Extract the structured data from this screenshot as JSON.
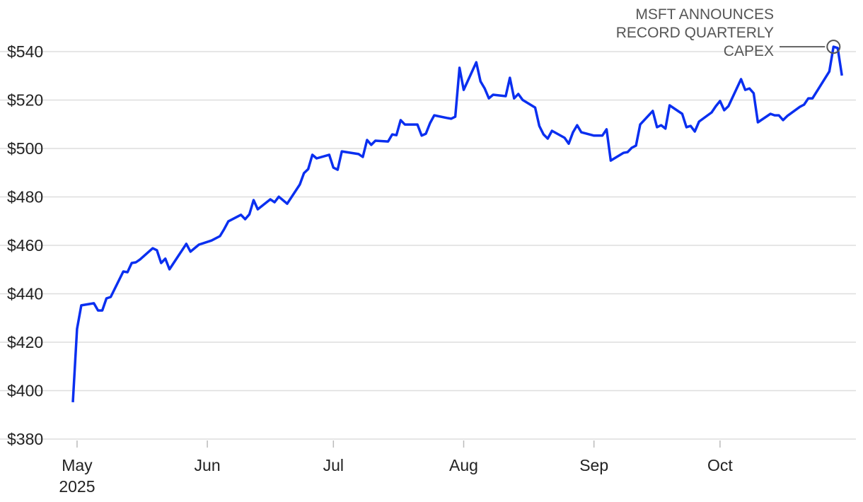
{
  "chart_data": {
    "type": "line",
    "x": [
      -1,
      0,
      1,
      4,
      5,
      6,
      7,
      8,
      11,
      12,
      13,
      14,
      15,
      18,
      19,
      20,
      21,
      22,
      26,
      27,
      29,
      32,
      34,
      35,
      36,
      39,
      40,
      41,
      42,
      43,
      46,
      47,
      48,
      50,
      53,
      54,
      55,
      56,
      57,
      60,
      61,
      62,
      63,
      67,
      68,
      69,
      70,
      71,
      74,
      75,
      76,
      77,
      78,
      81,
      82,
      83,
      84,
      85,
      88,
      89,
      90,
      91,
      92,
      95,
      96,
      97,
      98,
      99,
      102,
      103,
      104,
      105,
      106,
      109,
      110,
      111,
      112,
      113,
      116,
      117,
      118,
      119,
      120,
      123,
      125,
      126,
      127,
      130,
      131,
      132,
      133,
      134,
      137,
      138,
      139,
      140,
      141,
      144,
      145,
      146,
      147,
      148,
      151,
      152,
      153,
      154,
      155,
      158,
      159,
      160,
      161,
      162,
      165,
      166,
      167,
      168,
      169,
      172,
      173,
      174,
      175,
      179,
      180,
      181,
      182
    ],
    "series": [
      {
        "name": "MSFT",
        "color": "#0a2ff0",
        "values": [
          395.2,
          425.5,
          435.2,
          436.1,
          433.1,
          433.1,
          438.1,
          438.7,
          449.2,
          448.9,
          452.7,
          453,
          454.2,
          458.8,
          458,
          452.7,
          454.5,
          450.1,
          460.6,
          457.4,
          460.3,
          462,
          463.8,
          466.7,
          469.9,
          472.6,
          470.8,
          472.8,
          478.7,
          474.9,
          479,
          477.8,
          480.1,
          477.2,
          485.1,
          489.8,
          491.5,
          497.4,
          495.9,
          497.4,
          492.1,
          491.2,
          498.8,
          497.7,
          496.5,
          503.5,
          501.5,
          503.2,
          502.9,
          505.8,
          505.5,
          511.7,
          509.9,
          509.9,
          505.3,
          506.1,
          510.5,
          513.7,
          512.6,
          512.3,
          513.1,
          533.3,
          524.2,
          535.6,
          527.7,
          524.8,
          520.7,
          522.2,
          521.6,
          529.2,
          520.7,
          522.5,
          520.1,
          516.9,
          509.3,
          505.8,
          504.1,
          507.3,
          504.4,
          502,
          506.7,
          509.6,
          506.7,
          505.3,
          505.3,
          507.9,
          495,
          498.2,
          498.5,
          500.3,
          501.2,
          509.9,
          515.5,
          508.8,
          509.6,
          508.2,
          517.8,
          514.3,
          508.8,
          509.3,
          507,
          511.1,
          514.9,
          517.5,
          519.6,
          515.8,
          517.5,
          528.6,
          524.2,
          524.8,
          522.8,
          510.8,
          514.3,
          513.7,
          513.7,
          511.7,
          513.4,
          517.2,
          518.1,
          520.7,
          520.7,
          531.8,
          542,
          541.5,
          530.1
        ]
      }
    ],
    "xlim": [
      -18,
      185
    ],
    "xticks": [
      {
        "value": 0,
        "label": "May"
      },
      {
        "value": 31,
        "label": "Jun"
      },
      {
        "value": 61,
        "label": "Jul"
      },
      {
        "value": 92,
        "label": "Aug"
      },
      {
        "value": 123,
        "label": "Sep"
      },
      {
        "value": 153,
        "label": "Oct"
      }
    ],
    "xtick_year": "2025",
    "ylim": [
      380,
      540
    ],
    "yticks": [
      {
        "value": 380,
        "label": "$380"
      },
      {
        "value": 400,
        "label": "$400"
      },
      {
        "value": 420,
        "label": "$420"
      },
      {
        "value": 440,
        "label": "$440"
      },
      {
        "value": 460,
        "label": "$460"
      },
      {
        "value": 480,
        "label": "$480"
      },
      {
        "value": 500,
        "label": "$500"
      },
      {
        "value": 520,
        "label": "$520"
      },
      {
        "value": 540,
        "label": "$540"
      }
    ],
    "grid": true,
    "annotation": {
      "text": [
        "MSFT ANNOUNCES",
        "RECORD QUARTERLY",
        "CAPEX"
      ],
      "x": 180,
      "y": 542
    }
  }
}
